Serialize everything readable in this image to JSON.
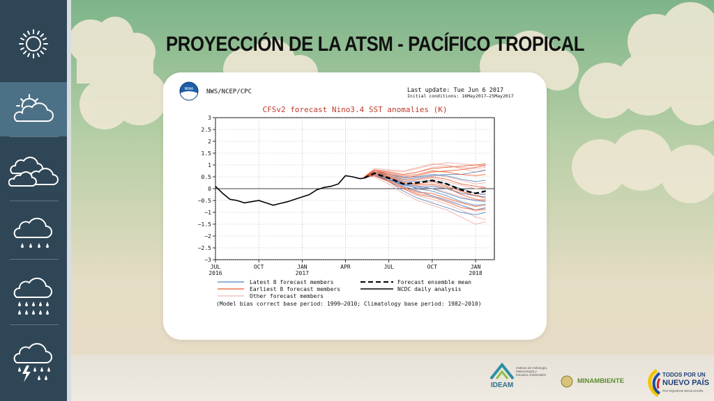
{
  "slide": {
    "title": "PROYECCIÓN DE LA ATSM - PACÍFICO TROPICAL"
  },
  "colors": {
    "sidebar": "#2f4656",
    "sidebar_active": "#4c7086",
    "sky_top": "#7fb38a",
    "sky_bottom": "#e7dcc5",
    "title": "#111111",
    "chart_title": "#c0392b",
    "latest_members": "#4f81bd",
    "earliest_members": "#e8562a",
    "other_members": "#f0a8a0"
  },
  "sidebar": {
    "items": [
      {
        "icon": "sun-icon"
      },
      {
        "icon": "sun-cloud-icon"
      },
      {
        "icon": "clouds-icon"
      },
      {
        "icon": "light-rain-icon"
      },
      {
        "icon": "heavy-rain-icon"
      },
      {
        "icon": "thunderstorm-icon"
      }
    ]
  },
  "header": {
    "agency": "NWS/NCEP/CPC",
    "noaa_badge": "NOAA",
    "last_update": "Last update: Tue Jun  6 2017",
    "initial_conditions": "Initial conditions: 16May2017–25May2017"
  },
  "chart_data": {
    "type": "line",
    "title": "CFSv2 forecast Nino3.4 SST anomalies (K)",
    "ylim": [
      -3,
      3
    ],
    "y_ticks": [
      3,
      2.5,
      2,
      1.5,
      1,
      0.5,
      0,
      -0.5,
      -1,
      -1.5,
      -2,
      -2.5,
      -3
    ],
    "y_tick_labels": [
      "3",
      "2.5",
      "2",
      "1.5",
      "1",
      "0.5",
      "0",
      "−0.5",
      "−1",
      "−1.5",
      "−2",
      "−2.5",
      "−3"
    ],
    "x_ticks": [
      {
        "label": "JUL",
        "year": "2016",
        "month": 0
      },
      {
        "label": "OCT",
        "year": "",
        "month": 3
      },
      {
        "label": "JAN",
        "year": "2017",
        "month": 6
      },
      {
        "label": "APR",
        "year": "",
        "month": 9
      },
      {
        "label": "JUL",
        "year": "",
        "month": 12
      },
      {
        "label": "OCT",
        "year": "",
        "month": 15
      },
      {
        "label": "JAN",
        "year": "2018",
        "month": 18
      }
    ],
    "xlim": [
      0,
      19.3
    ],
    "grid": true,
    "zero_line": true,
    "series": [
      {
        "name": "NCDC daily analysis",
        "style": "solid-black",
        "x": [
          0,
          0.5,
          1,
          1.5,
          2,
          2.5,
          3,
          3.5,
          4,
          4.5,
          5,
          5.5,
          6,
          6.5,
          7,
          7.5,
          8,
          8.5,
          9,
          9.5,
          10,
          10.3
        ],
        "y": [
          0.1,
          -0.2,
          -0.45,
          -0.5,
          -0.6,
          -0.55,
          -0.5,
          -0.6,
          -0.7,
          -0.62,
          -0.55,
          -0.45,
          -0.35,
          -0.25,
          -0.05,
          0.05,
          0.1,
          0.2,
          0.55,
          0.5,
          0.42,
          0.45
        ]
      },
      {
        "name": "Forecast ensemble mean",
        "style": "dashed-black",
        "x": [
          10.3,
          11,
          12,
          13,
          14,
          15,
          16,
          17,
          18,
          18.7
        ],
        "y": [
          0.45,
          0.65,
          0.45,
          0.2,
          0.25,
          0.35,
          0.2,
          -0.05,
          -0.2,
          -0.1
        ]
      }
    ],
    "members": [
      {
        "group": "latest",
        "y": [
          0.5,
          0.6,
          0.4,
          0.1,
          -0.1,
          -0.3,
          -0.5,
          -0.7,
          -0.9,
          -0.8
        ]
      },
      {
        "group": "latest",
        "y": [
          0.5,
          0.55,
          0.35,
          0.2,
          0.1,
          0.0,
          -0.2,
          -0.4,
          -0.5,
          -0.55
        ]
      },
      {
        "group": "latest",
        "y": [
          0.5,
          0.65,
          0.5,
          0.3,
          0.3,
          0.35,
          0.2,
          0.0,
          -0.2,
          -0.25
        ]
      },
      {
        "group": "latest",
        "y": [
          0.5,
          0.7,
          0.6,
          0.5,
          0.5,
          0.6,
          0.55,
          0.4,
          0.3,
          0.35
        ]
      },
      {
        "group": "latest",
        "y": [
          0.5,
          0.55,
          0.3,
          -0.1,
          -0.4,
          -0.6,
          -0.8,
          -1.0,
          -1.1,
          -1.0
        ]
      },
      {
        "group": "latest",
        "y": [
          0.5,
          0.6,
          0.45,
          0.2,
          0.0,
          -0.1,
          -0.3,
          -0.55,
          -0.7,
          -0.65
        ]
      },
      {
        "group": "latest",
        "y": [
          0.5,
          0.7,
          0.55,
          0.4,
          0.45,
          0.55,
          0.6,
          0.6,
          0.7,
          0.8
        ]
      },
      {
        "group": "latest",
        "y": [
          0.5,
          0.6,
          0.4,
          0.15,
          0.05,
          0.1,
          0.0,
          -0.2,
          -0.3,
          -0.35
        ]
      },
      {
        "group": "earliest",
        "y": [
          0.5,
          0.75,
          0.6,
          0.45,
          0.55,
          0.7,
          0.75,
          0.8,
          0.9,
          1.0
        ]
      },
      {
        "group": "earliest",
        "y": [
          0.5,
          0.65,
          0.45,
          0.25,
          0.2,
          0.3,
          0.1,
          -0.1,
          -0.3,
          -0.4
        ]
      },
      {
        "group": "earliest",
        "y": [
          0.5,
          0.8,
          0.7,
          0.6,
          0.7,
          0.85,
          0.9,
          0.95,
          1.0,
          1.05
        ]
      },
      {
        "group": "earliest",
        "y": [
          0.5,
          0.6,
          0.35,
          0.05,
          -0.15,
          -0.2,
          -0.4,
          -0.6,
          -0.75,
          -0.7
        ]
      },
      {
        "group": "earliest",
        "y": [
          0.5,
          0.7,
          0.55,
          0.35,
          0.4,
          0.5,
          0.4,
          0.2,
          0.1,
          0.05
        ]
      },
      {
        "group": "earliest",
        "y": [
          0.5,
          0.55,
          0.3,
          0.0,
          -0.25,
          -0.35,
          -0.55,
          -0.8,
          -0.9,
          -0.85
        ]
      },
      {
        "group": "earliest",
        "y": [
          0.5,
          0.75,
          0.65,
          0.55,
          0.6,
          0.75,
          0.7,
          0.6,
          0.55,
          0.6
        ]
      },
      {
        "group": "earliest",
        "y": [
          0.5,
          0.65,
          0.5,
          0.25,
          0.15,
          0.2,
          0.05,
          -0.25,
          -0.45,
          -0.5
        ]
      },
      {
        "group": "other",
        "y": [
          0.5,
          0.8,
          0.75,
          0.7,
          0.85,
          1.0,
          1.1,
          1.05,
          1.0,
          0.95
        ]
      },
      {
        "group": "other",
        "y": [
          0.5,
          0.5,
          0.2,
          -0.2,
          -0.5,
          -0.7,
          -0.9,
          -1.2,
          -1.5,
          -1.4
        ]
      },
      {
        "group": "other",
        "y": [
          0.5,
          0.7,
          0.6,
          0.45,
          0.5,
          0.6,
          0.5,
          0.35,
          0.2,
          0.25
        ]
      },
      {
        "group": "other",
        "y": [
          0.5,
          0.6,
          0.4,
          0.1,
          -0.05,
          0.0,
          -0.15,
          -0.35,
          -0.5,
          -0.45
        ]
      },
      {
        "group": "other",
        "y": [
          0.5,
          0.85,
          0.8,
          0.75,
          0.9,
          1.05,
          1.0,
          0.85,
          0.7,
          0.75
        ]
      },
      {
        "group": "other",
        "y": [
          0.5,
          0.55,
          0.3,
          0.0,
          -0.3,
          -0.45,
          -0.65,
          -0.9,
          -1.2,
          -1.3
        ]
      },
      {
        "group": "other",
        "y": [
          0.5,
          0.7,
          0.5,
          0.3,
          0.35,
          0.45,
          0.3,
          0.15,
          0.0,
          0.05
        ]
      },
      {
        "group": "other",
        "y": [
          0.5,
          0.65,
          0.45,
          0.2,
          0.1,
          0.15,
          0.0,
          -0.15,
          -0.3,
          -0.2
        ]
      },
      {
        "group": "other",
        "y": [
          0.5,
          0.75,
          0.7,
          0.6,
          0.7,
          0.9,
          0.95,
          0.9,
          0.85,
          0.9
        ]
      },
      {
        "group": "other",
        "y": [
          0.5,
          0.6,
          0.35,
          0.05,
          -0.2,
          -0.3,
          -0.45,
          -0.7,
          -0.95,
          -0.9
        ]
      }
    ],
    "members_x": [
      10.3,
      11,
      12,
      13,
      14,
      15,
      16,
      17,
      18,
      18.7
    ],
    "legend": {
      "placement": "bottom",
      "latest": "Latest 8 forecast members",
      "earliest": "Earliest 8 forecast members",
      "other": "Other forecast members",
      "mean": "Forecast ensemble mean",
      "ncdc": "NCDC daily analysis"
    },
    "footnote": "(Model bias correct base period: 1999–2010; Climatology base period: 1982–2010)"
  },
  "footer": {
    "ideam": "IDEAM",
    "ideam_sub": "Instituto de Hidrología, Meteorología y Estudios Ambientales",
    "minambiente": "MINAMBIENTE",
    "gov_line1": "TODOS POR UN",
    "gov_line2": "NUEVO PAÍS",
    "gov_line3": "PAZ  EQUIDAD  EDUCACIÓN"
  }
}
